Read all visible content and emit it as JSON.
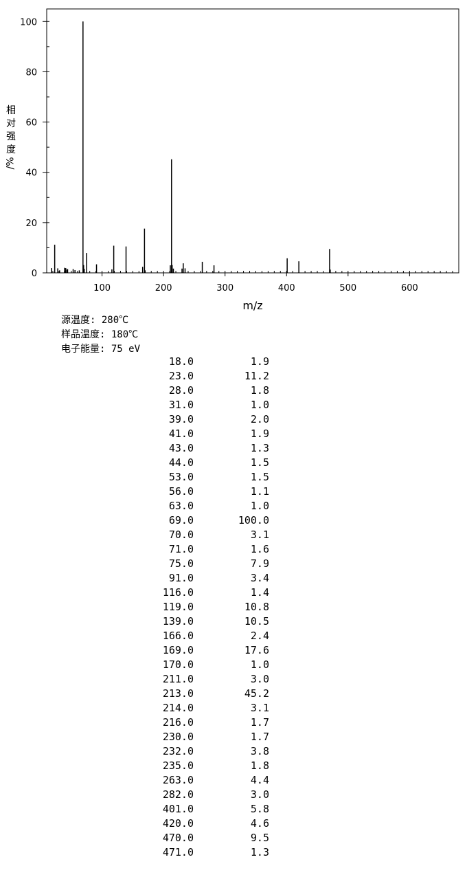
{
  "chart_data": {
    "type": "bar",
    "xlabel": "m/z",
    "ylabel": [
      "相",
      "对",
      "强",
      "度",
      "/%"
    ],
    "xlim": [
      10,
      680
    ],
    "ylim": [
      0,
      105
    ],
    "xticks": [
      100,
      200,
      300,
      400,
      500,
      600
    ],
    "yticks": [
      0,
      20,
      40,
      60,
      80,
      100
    ],
    "grid": false,
    "peaks": [
      {
        "mz": "18.0",
        "abundance": "1.9"
      },
      {
        "mz": "23.0",
        "abundance": "11.2"
      },
      {
        "mz": "28.0",
        "abundance": "1.8"
      },
      {
        "mz": "31.0",
        "abundance": "1.0"
      },
      {
        "mz": "39.0",
        "abundance": "2.0"
      },
      {
        "mz": "41.0",
        "abundance": "1.9"
      },
      {
        "mz": "43.0",
        "abundance": "1.3"
      },
      {
        "mz": "44.0",
        "abundance": "1.5"
      },
      {
        "mz": "53.0",
        "abundance": "1.5"
      },
      {
        "mz": "56.0",
        "abundance": "1.1"
      },
      {
        "mz": "63.0",
        "abundance": "1.0"
      },
      {
        "mz": "69.0",
        "abundance": "100.0"
      },
      {
        "mz": "70.0",
        "abundance": "3.1"
      },
      {
        "mz": "71.0",
        "abundance": "1.6"
      },
      {
        "mz": "75.0",
        "abundance": "7.9"
      },
      {
        "mz": "91.0",
        "abundance": "3.4"
      },
      {
        "mz": "116.0",
        "abundance": "1.4"
      },
      {
        "mz": "119.0",
        "abundance": "10.8"
      },
      {
        "mz": "139.0",
        "abundance": "10.5"
      },
      {
        "mz": "166.0",
        "abundance": "2.4"
      },
      {
        "mz": "169.0",
        "abundance": "17.6"
      },
      {
        "mz": "170.0",
        "abundance": "1.0"
      },
      {
        "mz": "211.0",
        "abundance": "3.0"
      },
      {
        "mz": "213.0",
        "abundance": "45.2"
      },
      {
        "mz": "214.0",
        "abundance": "3.1"
      },
      {
        "mz": "216.0",
        "abundance": "1.7"
      },
      {
        "mz": "230.0",
        "abundance": "1.7"
      },
      {
        "mz": "232.0",
        "abundance": "3.8"
      },
      {
        "mz": "235.0",
        "abundance": "1.8"
      },
      {
        "mz": "263.0",
        "abundance": "4.4"
      },
      {
        "mz": "282.0",
        "abundance": "3.0"
      },
      {
        "mz": "401.0",
        "abundance": "5.8"
      },
      {
        "mz": "420.0",
        "abundance": "4.6"
      },
      {
        "mz": "470.0",
        "abundance": "9.5"
      },
      {
        "mz": "471.0",
        "abundance": "1.3"
      }
    ]
  },
  "conditions": {
    "source_temp": "源温度: 280℃",
    "sample_temp": "样品温度: 180℃",
    "electron_energy": "电子能量: 75 eV"
  }
}
